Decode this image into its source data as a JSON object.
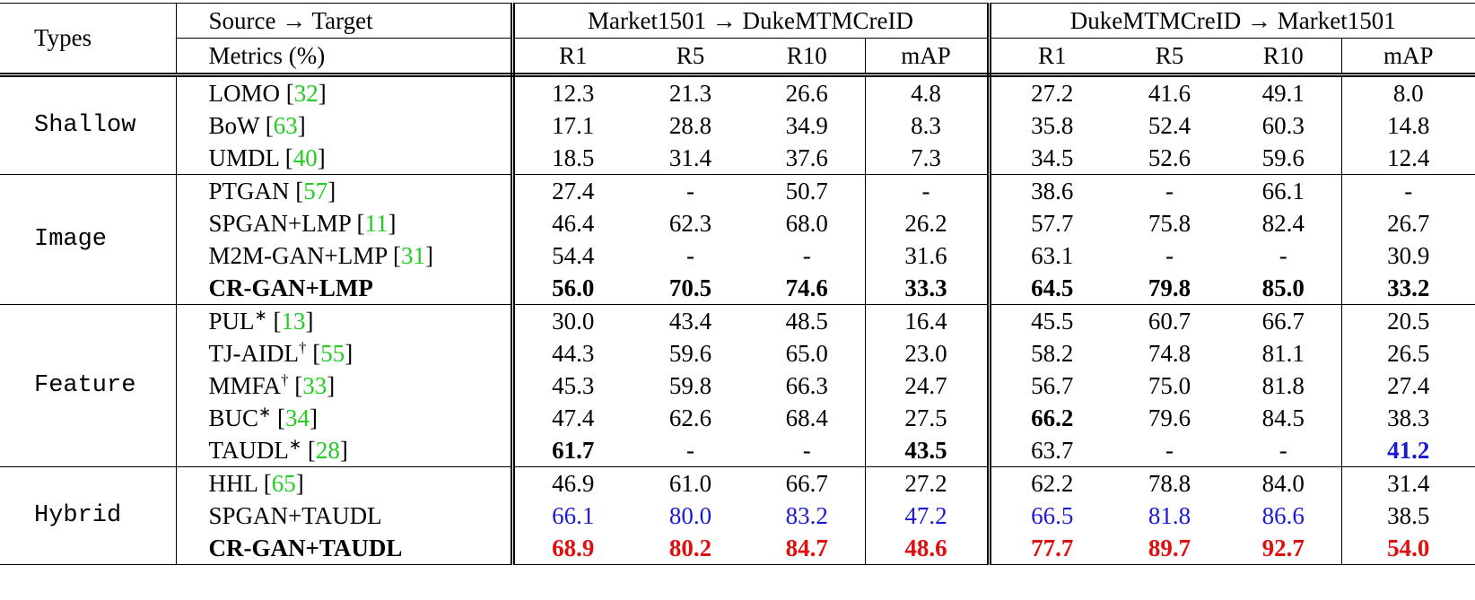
{
  "header": {
    "types": "Types",
    "source_target": "Source → Target",
    "metrics_label": "Metrics (%)",
    "groups": [
      "Market1501 → DukeMTMCreID",
      "DukeMTMCreID → Market1501"
    ],
    "metrics": [
      "R1",
      "R5",
      "R10",
      "mAP",
      "R1",
      "R5",
      "R10",
      "mAP"
    ]
  },
  "sections": [
    {
      "type": "Shallow",
      "rows": [
        {
          "method": "LOMO",
          "ref": "[32]",
          "values": [
            "12.3",
            "21.3",
            "26.6",
            "4.8",
            "27.2",
            "41.6",
            "49.1",
            "8.0"
          ]
        },
        {
          "method": "BoW",
          "ref": "[63]",
          "values": [
            "17.1",
            "28.8",
            "34.9",
            "8.3",
            "35.8",
            "52.4",
            "60.3",
            "14.8"
          ]
        },
        {
          "method": "UMDL",
          "ref": "[40]",
          "values": [
            "18.5",
            "31.4",
            "37.6",
            "7.3",
            "34.5",
            "52.6",
            "59.6",
            "12.4"
          ]
        }
      ]
    },
    {
      "type": "Image",
      "rows": [
        {
          "method": "PTGAN",
          "ref": "[57]",
          "values": [
            "27.4",
            "-",
            "50.7",
            "-",
            "38.6",
            "-",
            "66.1",
            "-"
          ]
        },
        {
          "method": "SPGAN+LMP",
          "ref": "[11]",
          "values": [
            "46.4",
            "62.3",
            "68.0",
            "26.2",
            "57.7",
            "75.8",
            "82.4",
            "26.7"
          ]
        },
        {
          "method": "M2M-GAN+LMP",
          "ref": "[31]",
          "values": [
            "54.4",
            "-",
            "-",
            "31.6",
            "63.1",
            "-",
            "-",
            "30.9"
          ]
        },
        {
          "method": "CR-GAN+LMP",
          "bold": true,
          "values": [
            "56.0",
            "70.5",
            "74.6",
            "33.3",
            "64.5",
            "79.8",
            "85.0",
            "33.2"
          ],
          "emphasis": [
            "bold",
            "bold",
            "bold",
            "bold",
            "bold",
            "bold",
            "bold",
            "bold"
          ]
        }
      ]
    },
    {
      "type": "Feature",
      "rows": [
        {
          "method": "PUL",
          "sup": "∗",
          "ref": "[13]",
          "values": [
            "30.0",
            "43.4",
            "48.5",
            "16.4",
            "45.5",
            "60.7",
            "66.7",
            "20.5"
          ]
        },
        {
          "method": "TJ-AIDL",
          "sup": "†",
          "ref": "[55]",
          "values": [
            "44.3",
            "59.6",
            "65.0",
            "23.0",
            "58.2",
            "74.8",
            "81.1",
            "26.5"
          ]
        },
        {
          "method": "MMFA",
          "sup": "†",
          "ref": "[33]",
          "values": [
            "45.3",
            "59.8",
            "66.3",
            "24.7",
            "56.7",
            "75.0",
            "81.8",
            "27.4"
          ]
        },
        {
          "method": "BUC",
          "sup": "∗",
          "ref": "[34]",
          "values": [
            "47.4",
            "62.6",
            "68.4",
            "27.5",
            "66.2",
            "79.6",
            "84.5",
            "38.3"
          ],
          "emphasis": [
            null,
            null,
            null,
            null,
            "bold",
            null,
            null,
            null
          ]
        },
        {
          "method": "TAUDL",
          "sup": "∗",
          "ref": "[28]",
          "values": [
            "61.7",
            "-",
            "-",
            "43.5",
            "63.7",
            "-",
            "-",
            "41.2"
          ],
          "emphasis": [
            "bold",
            null,
            null,
            "bold",
            null,
            null,
            null,
            "blue-bold"
          ]
        }
      ]
    },
    {
      "type": "Hybrid",
      "rows": [
        {
          "method": "HHL",
          "ref": "[65]",
          "values": [
            "46.9",
            "61.0",
            "66.7",
            "27.2",
            "62.2",
            "78.8",
            "84.0",
            "31.4"
          ]
        },
        {
          "method": "SPGAN+TAUDL",
          "values": [
            "66.1",
            "80.0",
            "83.2",
            "47.2",
            "66.5",
            "81.8",
            "86.6",
            "38.5"
          ],
          "emphasis": [
            "blue",
            "blue",
            "blue",
            "blue",
            "blue",
            "blue",
            "blue",
            null
          ]
        },
        {
          "method": "CR-GAN+TAUDL",
          "bold": true,
          "values": [
            "68.9",
            "80.2",
            "84.7",
            "48.6",
            "77.7",
            "89.7",
            "92.7",
            "54.0"
          ],
          "emphasis": [
            "red-bold",
            "red-bold",
            "red-bold",
            "red-bold",
            "red-bold",
            "red-bold",
            "red-bold",
            "red-bold"
          ]
        }
      ]
    }
  ]
}
